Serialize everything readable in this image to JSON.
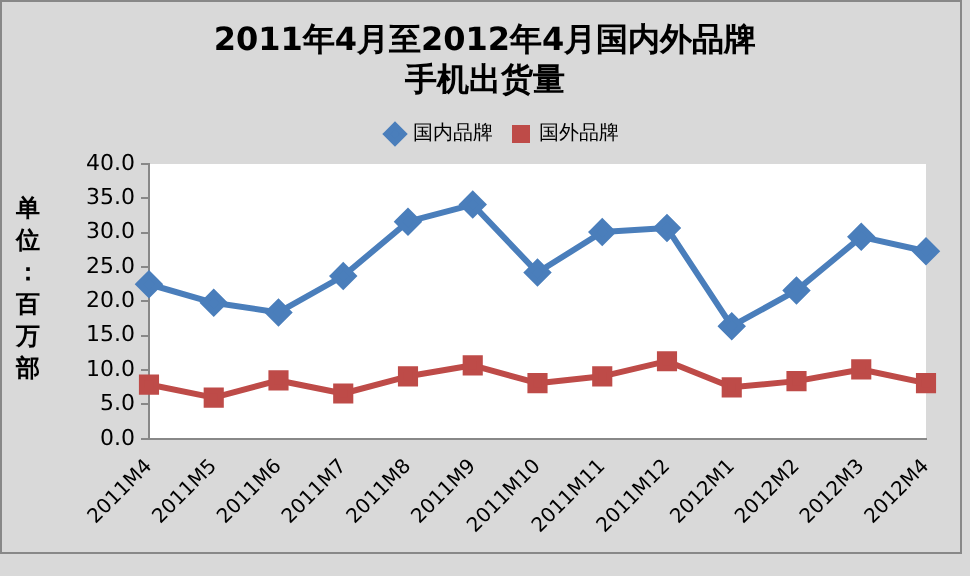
{
  "chart_data": {
    "type": "line",
    "title": "2011年4月至2012年4月国内外品牌手机出货量",
    "ylabel": "单位：百万部",
    "categories": [
      "2011M4",
      "2011M5",
      "2011M6",
      "2011M7",
      "2011M8",
      "2011M9",
      "2011M10",
      "2011M11",
      "2011M12",
      "2012M1",
      "2012M2",
      "2012M3",
      "2012M4"
    ],
    "series": [
      {
        "name": "国内品牌",
        "color": "#4a7ebb",
        "marker": "diamond",
        "values": [
          22.5,
          19.8,
          18.4,
          23.7,
          31.6,
          34.1,
          24.2,
          30.1,
          30.7,
          16.4,
          21.6,
          29.4,
          27.3
        ]
      },
      {
        "name": "国外品牌",
        "color": "#be4b48",
        "marker": "square",
        "values": [
          7.9,
          6.0,
          8.5,
          6.6,
          9.1,
          10.7,
          8.1,
          9.1,
          11.3,
          7.5,
          8.4,
          10.1,
          8.1
        ]
      }
    ],
    "ylim": [
      0,
      40
    ],
    "yticks": [
      {
        "value": 0,
        "label": "0.0"
      },
      {
        "value": 5,
        "label": "5.0"
      },
      {
        "value": 10,
        "label": "10.0"
      },
      {
        "value": 15,
        "label": "15.0"
      },
      {
        "value": 20,
        "label": "20.0"
      },
      {
        "value": 25,
        "label": "25.0"
      },
      {
        "value": 30,
        "label": "30.0"
      },
      {
        "value": 35,
        "label": "35.0"
      },
      {
        "value": 40,
        "label": "40.0"
      }
    ],
    "grid": false,
    "legend": "top",
    "line_style": "solid"
  }
}
